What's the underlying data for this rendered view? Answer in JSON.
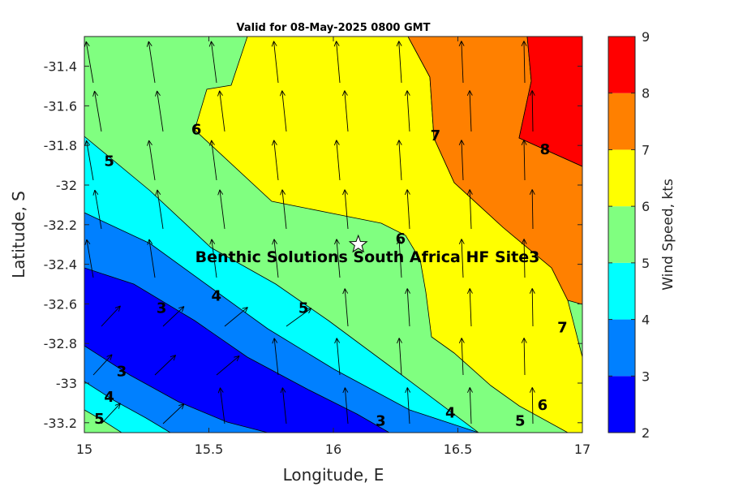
{
  "chart_data": {
    "type": "contour-map",
    "title": "Valid for 08-May-2025 0800 GMT",
    "xlabel": "Longitude, E",
    "ylabel": "Latitude, S",
    "xlim": [
      15,
      17
    ],
    "ylim": [
      -33.25,
      -31.25
    ],
    "x_ticks": [
      "15",
      "15.5",
      "16",
      "16.5",
      "17"
    ],
    "y_ticks": [
      "-31.4",
      "-31.6",
      "-31.8",
      "-32",
      "-32.2",
      "-32.4",
      "-32.6",
      "-32.8",
      "-33",
      "-33.2"
    ],
    "colorbar": {
      "label": "Wind Speed, kts",
      "ticks": [
        "2",
        "3",
        "4",
        "5",
        "6",
        "7",
        "8",
        "9"
      ],
      "levels": [
        {
          "from": 2,
          "to": 3,
          "color": "#0000ff"
        },
        {
          "from": 3,
          "to": 4,
          "color": "#0080ff"
        },
        {
          "from": 4,
          "to": 5,
          "color": "#00ffff"
        },
        {
          "from": 5,
          "to": 6,
          "color": "#80ff80"
        },
        {
          "from": 6,
          "to": 7,
          "color": "#ffff00"
        },
        {
          "from": 7,
          "to": 8,
          "color": "#ff8000"
        },
        {
          "from": 8,
          "to": 9,
          "color": "#ff0000"
        }
      ]
    },
    "site": {
      "label": "Benthic Solutions South Africa HF Site3",
      "lon": 16.1,
      "lat": -32.3
    },
    "contour_labels": [
      {
        "text": "6",
        "lon": 15.45,
        "lat": -31.72
      },
      {
        "text": "7",
        "lon": 16.41,
        "lat": -31.75
      },
      {
        "text": "8",
        "lon": 16.85,
        "lat": -31.82
      },
      {
        "text": "5",
        "lon": 15.1,
        "lat": -31.88
      },
      {
        "text": "6",
        "lon": 16.27,
        "lat": -32.27
      },
      {
        "text": "4",
        "lon": 15.53,
        "lat": -32.56
      },
      {
        "text": "3",
        "lon": 15.31,
        "lat": -32.62
      },
      {
        "text": "5",
        "lon": 15.88,
        "lat": -32.62
      },
      {
        "text": "7",
        "lon": 16.92,
        "lat": -32.72
      },
      {
        "text": "3",
        "lon": 15.15,
        "lat": -32.94
      },
      {
        "text": "4",
        "lon": 15.1,
        "lat": -33.07
      },
      {
        "text": "5",
        "lon": 15.06,
        "lat": -33.18
      },
      {
        "text": "6",
        "lon": 16.84,
        "lat": -33.11
      },
      {
        "text": "4",
        "lon": 16.47,
        "lat": -33.15
      },
      {
        "text": "5",
        "lon": 16.75,
        "lat": -33.19
      },
      {
        "text": "3",
        "lon": 16.19,
        "lat": -33.19
      }
    ]
  }
}
